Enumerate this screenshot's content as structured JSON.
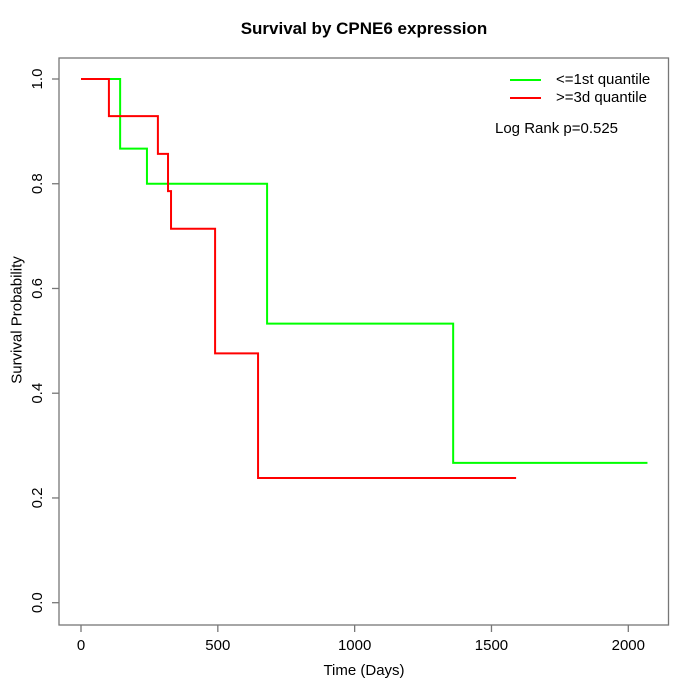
{
  "chart_data": {
    "type": "line",
    "subtype": "kaplan-meier-step",
    "title": "Survival by CPNE6 expression",
    "xlabel": "Time (Days)",
    "ylabel": "Survival Probability",
    "xlim": [
      0,
      2000
    ],
    "ylim": [
      0.0,
      1.0
    ],
    "x_ticks": [
      0,
      500,
      1000,
      1500,
      2000
    ],
    "x_tick_labels": [
      "0",
      "500",
      "1000",
      "1500",
      "2000"
    ],
    "y_ticks": [
      0.0,
      0.2,
      0.4,
      0.6,
      0.8,
      1.0
    ],
    "y_tick_labels": [
      "0.0",
      "0.2",
      "0.4",
      "0.6",
      "0.8",
      "1.0"
    ],
    "grid": false,
    "legend_position": "top-right",
    "annotation": "Log Rank p=0.525",
    "axis_color": "#777777",
    "text_color": "#000000",
    "series": [
      {
        "name": "<=1st quantile",
        "color": "#00ff00",
        "start": {
          "t": 0,
          "s": 1.0
        },
        "steps": [
          {
            "t": 143,
            "s": 0.867
          },
          {
            "t": 241,
            "s": 0.8
          },
          {
            "t": 680,
            "s": 0.533
          },
          {
            "t": 1360,
            "s": 0.267
          }
        ],
        "end_t": 2070
      },
      {
        "name": ">=3d quantile",
        "color": "#ff0000",
        "start": {
          "t": 0,
          "s": 1.0
        },
        "steps": [
          {
            "t": 102,
            "s": 0.929
          },
          {
            "t": 281,
            "s": 0.857
          },
          {
            "t": 318,
            "s": 0.786
          },
          {
            "t": 329,
            "s": 0.714
          },
          {
            "t": 490,
            "s": 0.476
          },
          {
            "t": 647,
            "s": 0.238
          }
        ],
        "end_t": 1590
      }
    ]
  }
}
